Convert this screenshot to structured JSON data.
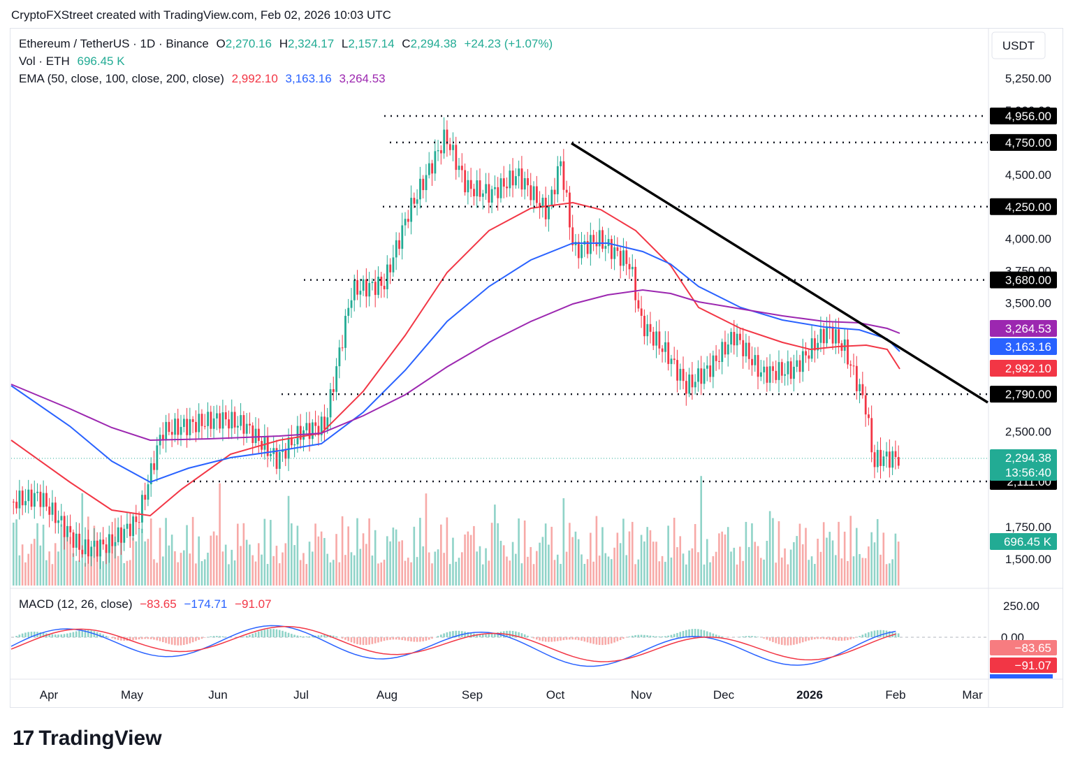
{
  "caption": "CryptoFXStreet created with TradingView.com, Feb 02, 2026 10:03 UTC",
  "header": {
    "symbol": "Ethereum / TetherUS · 1D · Binance",
    "o_label": "O",
    "o": "2,270.16",
    "h_label": "H",
    "h": "2,324.17",
    "l_label": "L",
    "l": "2,157.14",
    "c_label": "C",
    "c": "2,294.38",
    "change": "+24.23 (+1.07%)",
    "vol_label": "Vol · ETH",
    "vol": "696.45 K",
    "ema_label": "EMA (50, close, 100, close, 200, close)",
    "ema50": "2,992.10",
    "ema100": "3,163.16",
    "ema200": "3,264.53",
    "macd_label": "MACD (12, 26, close)",
    "macd_hist": "−83.65",
    "macd_line": "−174.71",
    "macd_signal": "−91.07"
  },
  "axis": {
    "currency": "USDT",
    "price_ticks": [
      "5,250.00",
      "5,000.00",
      "4,500.00",
      "4,000.00",
      "3,750.00",
      "3,500.00",
      "2,500.00",
      "1,750.00",
      "1,500.00"
    ],
    "macd_ticks": [
      "250.00",
      "0.00"
    ],
    "x_ticks": [
      "Apr",
      "May",
      "Jun",
      "Jul",
      "Aug",
      "Sep",
      "Oct",
      "Nov",
      "Dec",
      "2026",
      "Feb",
      "Mar"
    ]
  },
  "level_labels": [
    "4,956.00",
    "4,750.00",
    "4,250.00",
    "3,680.00",
    "2,790.00",
    "2,111.00"
  ],
  "tags": {
    "ema200": "3,264.53",
    "ema100": "3,163.16",
    "ema50": "2,992.10",
    "last": "2,294.38",
    "countdown": "13:56:40",
    "volume": "696.45 K",
    "macd_hist": "−83.65",
    "macd_signal": "−91.07"
  },
  "brand": "TradingView",
  "colors": {
    "up": "#22ab94",
    "down": "#f23645",
    "ema50": "#f23645",
    "ema100": "#2962ff",
    "ema200": "#9c27b0",
    "trend": "#000000"
  },
  "chart_data": {
    "type": "candlestick",
    "title": "Ethereum / TetherUS · 1D · Binance",
    "ylim": [
      1350,
      5500
    ],
    "x": [
      "2025-03-15",
      "2025-03-25",
      "2025-04-01",
      "2025-04-10",
      "2025-04-20",
      "2025-05-01",
      "2025-05-10",
      "2025-05-20",
      "2025-06-01",
      "2025-06-10",
      "2025-06-22",
      "2025-07-01",
      "2025-07-10",
      "2025-07-20",
      "2025-08-01",
      "2025-08-10",
      "2025-08-24",
      "2025-09-01",
      "2025-09-10",
      "2025-09-20",
      "2025-10-01",
      "2025-10-06",
      "2025-10-11",
      "2025-10-20",
      "2025-11-01",
      "2025-11-05",
      "2025-11-15",
      "2025-11-22",
      "2025-12-01",
      "2025-12-10",
      "2025-12-20",
      "2026-01-01",
      "2026-01-14",
      "2026-01-20",
      "2026-01-28",
      "2026-01-31",
      "2026-02-02"
    ],
    "close": [
      1950,
      2000,
      1820,
      1580,
      1620,
      1810,
      2500,
      2550,
      2600,
      2550,
      2280,
      2500,
      2550,
      3600,
      3650,
      4200,
      4800,
      4400,
      4350,
      4500,
      4200,
      4600,
      3900,
      4000,
      3800,
      3350,
      3100,
      2850,
      3000,
      3250,
      2950,
      2980,
      3300,
      3150,
      2700,
      2250,
      2294.38
    ],
    "volume_last": "696.45 K",
    "ema50_last": 2992.1,
    "ema100_last": 3163.16,
    "ema200_last": 3264.53,
    "levels": [
      4956,
      4750,
      4250,
      3680,
      2790,
      2111
    ],
    "trendline": [
      {
        "x": "2025-10-06",
        "y": 4750
      },
      {
        "x": "2026-02-28",
        "y": 2790
      }
    ],
    "macd": {
      "hist": -83.65,
      "macd": -174.71,
      "signal": -91.07
    }
  }
}
